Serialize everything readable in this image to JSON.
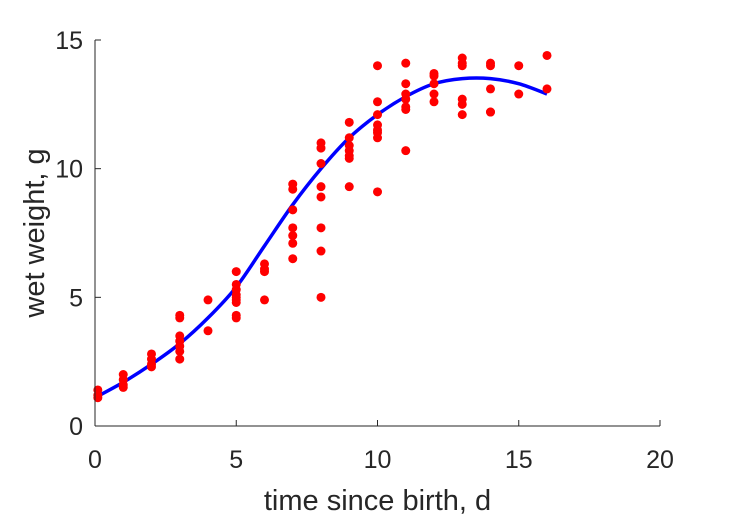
{
  "chart_data": {
    "type": "scatter",
    "title": "",
    "xlabel": "time since birth, d",
    "ylabel": "wet weight, g",
    "xlim": [
      0,
      20
    ],
    "ylim": [
      0,
      15
    ],
    "xticks": [
      0,
      5,
      10,
      15,
      20
    ],
    "yticks": [
      0,
      5,
      10,
      15
    ],
    "xtick_labels": [
      "0",
      "5",
      "10",
      "15",
      "20"
    ],
    "ytick_labels": [
      "0",
      "5",
      "10",
      "15"
    ],
    "grid": false,
    "colors": {
      "points": "#ff0000",
      "fit": "#0000ff",
      "axis": "#262626"
    },
    "series": [
      {
        "type": "scatter",
        "x": [
          0.1,
          0.1,
          0.1,
          1,
          1,
          1,
          1,
          2,
          2,
          2,
          2,
          3,
          3,
          3,
          3,
          3,
          3,
          3,
          4,
          4,
          5,
          5,
          5,
          5,
          5,
          5,
          5,
          5,
          5,
          6,
          6,
          6,
          6,
          7,
          7,
          7,
          7,
          7,
          7,
          7,
          8,
          8,
          8,
          8,
          8,
          8,
          8,
          8,
          9,
          9,
          9,
          9,
          9,
          9,
          9,
          10,
          10,
          10,
          10,
          10,
          10,
          10,
          10,
          11,
          11,
          11,
          11,
          11,
          11,
          11,
          12,
          12,
          12,
          12,
          12,
          13,
          13,
          13,
          13,
          13,
          13,
          14,
          14,
          14,
          14,
          14,
          15,
          15,
          16,
          16
        ],
        "y": [
          1.4,
          1.2,
          1.1,
          2.0,
          1.8,
          1.6,
          1.5,
          2.8,
          2.6,
          2.4,
          2.3,
          4.3,
          4.2,
          3.5,
          3.3,
          3.1,
          2.9,
          2.6,
          4.9,
          3.7,
          6.0,
          5.5,
          5.3,
          5.1,
          5.0,
          4.9,
          4.8,
          4.3,
          4.2,
          6.3,
          6.1,
          6.0,
          4.9,
          9.4,
          9.2,
          8.4,
          7.7,
          7.4,
          7.1,
          6.5,
          11.0,
          10.8,
          10.2,
          9.3,
          8.9,
          7.7,
          6.8,
          5.0,
          11.8,
          11.2,
          10.9,
          10.7,
          10.5,
          10.4,
          9.3,
          14.0,
          12.6,
          12.1,
          11.7,
          11.5,
          11.4,
          11.2,
          9.1,
          14.1,
          13.3,
          12.9,
          12.7,
          12.4,
          12.3,
          10.7,
          13.7,
          13.6,
          13.3,
          12.9,
          12.6,
          14.3,
          14.1,
          14.0,
          12.7,
          12.5,
          12.1,
          14.1,
          14.0,
          13.1,
          12.2,
          12.2,
          14.0,
          12.9,
          14.4,
          13.1
        ]
      },
      {
        "type": "line",
        "x": [
          0,
          1,
          2,
          3,
          4,
          5,
          6,
          7,
          8,
          9,
          10,
          11,
          12,
          13,
          14,
          15,
          16
        ],
        "y": [
          1.1,
          1.7,
          2.4,
          3.2,
          4.2,
          5.4,
          7.0,
          8.6,
          10.0,
          11.2,
          12.1,
          12.8,
          13.3,
          13.5,
          13.5,
          13.3,
          12.9
        ]
      }
    ]
  }
}
